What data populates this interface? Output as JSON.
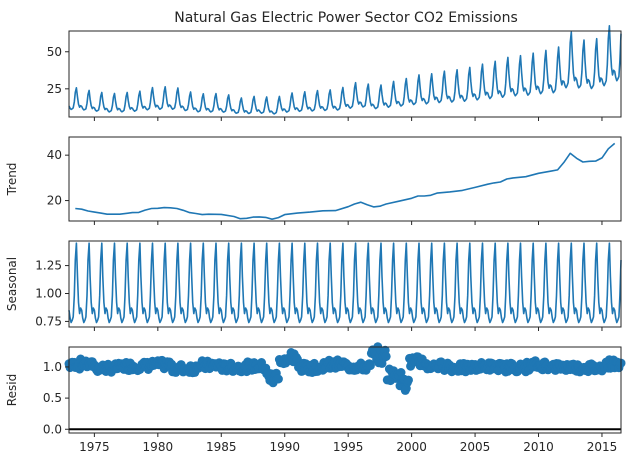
{
  "chart_data": {
    "type": "line",
    "kind": "seasonal-decomposition",
    "title": "Natural Gas Electric Power Sector CO2 Emissions",
    "x_range": [
      1973.0,
      2016.5
    ],
    "x_ticks": [
      1975,
      1980,
      1985,
      1990,
      1995,
      2000,
      2005,
      2010,
      2015
    ],
    "panels": [
      {
        "key": "observed",
        "ylabel": "",
        "ylim": [
          6,
          64
        ],
        "yticks": [
          25,
          50
        ],
        "style": "line",
        "values_note": "monthly",
        "x": [
          1973.0,
          1974.0,
          1975.0,
          1976.0,
          1977.0,
          1978.0,
          1979.0,
          1980.0,
          1981.0,
          1982.0,
          1983.0,
          1984.0,
          1985.0,
          1986.0,
          1987.0,
          1988.0,
          1989.0,
          1990.0,
          1991.0,
          1992.0,
          1993.0,
          1994.0,
          1995.0,
          1996.0,
          1997.0,
          1998.0,
          1999.0,
          2000.0,
          2001.0,
          2002.0,
          2003.0,
          2004.0,
          2005.0,
          2006.0,
          2007.0,
          2008.0,
          2009.0,
          2010.0,
          2011.0,
          2012.0,
          2013.0,
          2014.0,
          2015.0,
          2016.0,
          2016.5
        ],
        "y": [
          16,
          16,
          14,
          14,
          15,
          15,
          16,
          16,
          17,
          16,
          14,
          14,
          14,
          13,
          12,
          12,
          12,
          14,
          14,
          15,
          15,
          16,
          17,
          18,
          17,
          20,
          21,
          22,
          22,
          24,
          23,
          24,
          26,
          27,
          28,
          30,
          30,
          32,
          33,
          37,
          36,
          37,
          40,
          44,
          46
        ]
      },
      {
        "key": "trend",
        "ylabel": "Trend",
        "ylim": [
          11,
          48
        ],
        "yticks": [
          20,
          40
        ],
        "style": "line",
        "x": [
          1973.5,
          1974.0,
          1974.5,
          1975.0,
          1975.5,
          1976.0,
          1977.0,
          1978.0,
          1978.5,
          1979.0,
          1979.5,
          1980.0,
          1980.5,
          1981.0,
          1981.5,
          1982.0,
          1982.5,
          1983.0,
          1983.5,
          1984.0,
          1985.0,
          1986.0,
          1986.5,
          1987.0,
          1987.5,
          1988.0,
          1988.5,
          1989.0,
          1989.5,
          1990.0,
          1991.0,
          1992.0,
          1993.0,
          1994.0,
          1995.0,
          1995.5,
          1996.0,
          1996.5,
          1997.0,
          1997.5,
          1998.0,
          1999.0,
          2000.0,
          2000.5,
          2001.0,
          2001.5,
          2002.0,
          2003.0,
          2004.0,
          2005.0,
          2006.0,
          2006.5,
          2007.0,
          2007.5,
          2008.0,
          2009.0,
          2010.0,
          2011.0,
          2011.5,
          2012.0,
          2012.5,
          2013.0,
          2013.5,
          2014.0,
          2014.5,
          2015.0,
          2015.5,
          2016.0
        ],
        "y": [
          16.5,
          16.2,
          15.4,
          14.9,
          14.5,
          14.0,
          14.0,
          14.7,
          14.8,
          15.8,
          16.5,
          16.6,
          16.9,
          16.8,
          16.5,
          15.7,
          14.7,
          14.3,
          13.8,
          14.0,
          13.9,
          13.0,
          12.0,
          12.2,
          12.7,
          12.8,
          12.6,
          11.8,
          12.5,
          13.8,
          14.5,
          14.9,
          15.5,
          15.6,
          17.3,
          18.5,
          19.3,
          18.2,
          17.2,
          17.5,
          18.5,
          19.7,
          21.0,
          22.0,
          22.0,
          22.3,
          23.3,
          23.8,
          24.5,
          25.8,
          27.2,
          27.8,
          28.2,
          29.5,
          30.0,
          30.5,
          32.0,
          33.0,
          33.5,
          36.8,
          40.8,
          38.6,
          37.0,
          37.3,
          37.4,
          38.8,
          42.8,
          45.2
        ]
      },
      {
        "key": "seasonal",
        "ylabel": "Seasonal",
        "ylim": [
          0.7,
          1.47
        ],
        "yticks": [
          0.75,
          1.0,
          1.25
        ],
        "tick_labels": [
          "0.75",
          "1.00",
          "1.25"
        ],
        "style": "line",
        "period": 12,
        "monthly_factors": [
          0.85,
          0.78,
          0.74,
          0.76,
          0.79,
          0.98,
          1.3,
          1.45,
          1.15,
          0.92,
          0.82,
          0.87
        ]
      },
      {
        "key": "resid",
        "ylabel": "Resid",
        "ylim": [
          -0.06,
          1.32
        ],
        "yticks": [
          0.0,
          0.5,
          1.0
        ],
        "tick_labels": [
          "0.0",
          "0.5",
          "1.0"
        ],
        "style": "scatter",
        "baseline": 0.0,
        "x": [
          1974.0,
          1976.0,
          1978.0,
          1980.0,
          1982.0,
          1984.0,
          1986.0,
          1988.0,
          1989.0,
          1990.0,
          1992.0,
          1994.0,
          1996.0,
          1997.5,
          1998.5,
          1999.5,
          2000.0,
          2002.0,
          2004.0,
          2006.0,
          2008.0,
          2010.0,
          2012.0,
          2014.0,
          2016.0
        ],
        "y": [
          1.05,
          0.98,
          1.02,
          1.04,
          0.97,
          1.03,
          0.99,
          1.01,
          0.8,
          1.15,
          0.98,
          1.04,
          1.0,
          1.2,
          0.85,
          0.75,
          1.1,
          1.02,
          0.98,
          1.01,
          0.99,
          1.03,
          1.0,
          0.98,
          1.05
        ]
      }
    ]
  }
}
